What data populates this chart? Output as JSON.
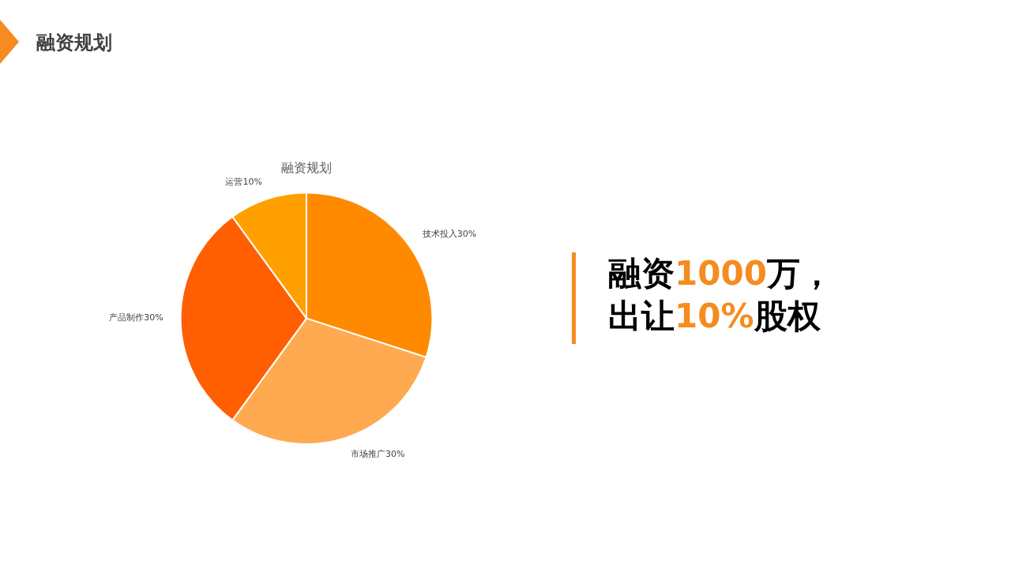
{
  "chart_data": {
    "type": "pie",
    "subtitle": "融资规划",
    "title": "融资规划",
    "categories": [
      "技术投入",
      "市场推广",
      "产品制作",
      "运营"
    ],
    "values": [
      30,
      30,
      30,
      10
    ],
    "value_labels": [
      "30%",
      "30%",
      "30%",
      "10%"
    ],
    "colors": [
      "#ff8a00",
      "#ffaa50",
      "#ff5f00",
      "#ffa000"
    ],
    "legend": false,
    "annotations": [
      "融资1000万，",
      "出让10%股权"
    ]
  }
}
